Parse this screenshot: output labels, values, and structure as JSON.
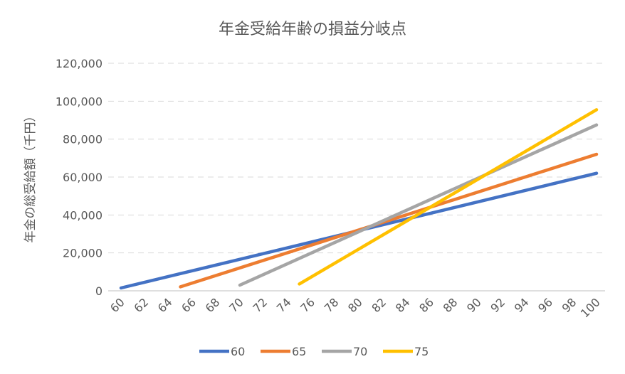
{
  "chart_data": {
    "type": "line",
    "title": "年金受給年齢の損益分岐点",
    "xlabel": "",
    "ylabel": "年金の総受給額（千円）",
    "x_ticks": [
      "60",
      "62",
      "64",
      "66",
      "68",
      "70",
      "72",
      "74",
      "76",
      "78",
      "80",
      "82",
      "84",
      "86",
      "88",
      "90",
      "92",
      "94",
      "96",
      "98",
      "100"
    ],
    "xlim": [
      60,
      100
    ],
    "ylim": [
      0,
      120000
    ],
    "y_ticks": [
      "0",
      "20,000",
      "40,000",
      "60,000",
      "80,000",
      "100,000",
      "120,000"
    ],
    "y_tick_values": [
      0,
      20000,
      40000,
      60000,
      80000,
      100000,
      120000
    ],
    "grid": true,
    "legend_position": "bottom",
    "series": [
      {
        "name": "60",
        "color": "#4472c4",
        "points": [
          [
            60,
            1500
          ],
          [
            100,
            62000
          ]
        ]
      },
      {
        "name": "65",
        "color": "#ed7d31",
        "points": [
          [
            65,
            2100
          ],
          [
            100,
            72000
          ]
        ]
      },
      {
        "name": "70",
        "color": "#a5a5a5",
        "points": [
          [
            70,
            3000
          ],
          [
            100,
            87500
          ]
        ]
      },
      {
        "name": "75",
        "color": "#ffc000",
        "points": [
          [
            75,
            3600
          ],
          [
            100,
            95500
          ]
        ]
      }
    ]
  }
}
